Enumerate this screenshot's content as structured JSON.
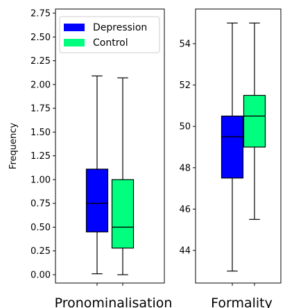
{
  "chart_data": [
    {
      "type": "box",
      "xlabel": "Pronominalisation",
      "ylabel": "Frequency",
      "ylim": [
        -0.05,
        2.75
      ],
      "yticks": [
        "0.00",
        "0.25",
        "0.50",
        "0.75",
        "1.00",
        "1.25",
        "1.50",
        "1.75",
        "2.00",
        "2.25",
        "2.50",
        "2.75"
      ],
      "legend": {
        "position": "top-left",
        "entries": [
          "Depression",
          "Control"
        ]
      },
      "series": [
        {
          "name": "Depression",
          "color": "#0000ff",
          "whisker_low": 0.01,
          "q1": 0.45,
          "median": 0.75,
          "q3": 1.11,
          "whisker_high": 2.09
        },
        {
          "name": "Control",
          "color": "#00ff7f",
          "whisker_low": 0.0,
          "q1": 0.28,
          "median": 0.5,
          "q3": 1.0,
          "whisker_high": 2.07
        }
      ]
    },
    {
      "type": "box",
      "xlabel": "Formality",
      "ylim": [
        42.3,
        55.5
      ],
      "yticks": [
        "44",
        "46",
        "48",
        "50",
        "52",
        "54"
      ],
      "series": [
        {
          "name": "Depression",
          "color": "#0000ff",
          "whisker_low": 43.0,
          "q1": 47.5,
          "median": 49.5,
          "q3": 50.5,
          "whisker_high": 55.0
        },
        {
          "name": "Control",
          "color": "#00ff7f",
          "whisker_low": 45.5,
          "q1": 49.0,
          "median": 50.5,
          "q3": 51.5,
          "whisker_high": 55.0
        }
      ]
    }
  ]
}
